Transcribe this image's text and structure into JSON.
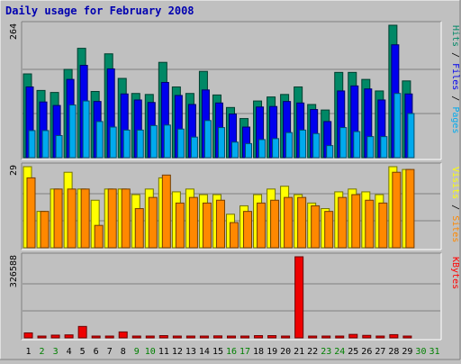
{
  "chart_data": [
    {
      "type": "bar",
      "title": "Daily usage for February 2008",
      "max_label": "264",
      "legend": [
        {
          "label": "Pages",
          "color": "#00aaee"
        },
        {
          "label": "Files",
          "color": "#0000ee"
        },
        {
          "label": "Hits",
          "color": "#008866"
        }
      ],
      "categories": [
        "1",
        "2",
        "3",
        "4",
        "5",
        "6",
        "7",
        "8",
        "9",
        "10",
        "11",
        "12",
        "13",
        "14",
        "15",
        "16",
        "17",
        "18",
        "19",
        "20",
        "21",
        "22",
        "23",
        "24",
        "25",
        "26",
        "27",
        "28",
        "29",
        "30",
        "31"
      ],
      "weekend_days": [
        "2",
        "3",
        "9",
        "10",
        "16",
        "17",
        "23",
        "24",
        "30",
        "31"
      ],
      "series": [
        {
          "name": "Hits",
          "color": "#008866",
          "values": [
            167,
            134,
            130,
            176,
            218,
            132,
            207,
            158,
            128,
            126,
            190,
            141,
            128,
            172,
            125,
            100,
            78,
            113,
            121,
            126,
            141,
            106,
            95,
            170,
            170,
            156,
            133,
            264,
            153,
            0,
            0
          ]
        },
        {
          "name": "Files",
          "color": "#0000ee",
          "values": [
            141,
            111,
            104,
            156,
            184,
            112,
            177,
            127,
            115,
            110,
            150,
            124,
            106,
            135,
            109,
            87,
            61,
            101,
            102,
            112,
            109,
            96,
            72,
            133,
            143,
            137,
            115,
            225,
            127,
            0,
            0
          ]
        },
        {
          "name": "Pages",
          "color": "#00aaee",
          "values": [
            54,
            54,
            44,
            105,
            113,
            72,
            61,
            55,
            55,
            64,
            65,
            57,
            41,
            74,
            60,
            31,
            28,
            36,
            38,
            50,
            55,
            48,
            24,
            60,
            52,
            42,
            42,
            128,
            88,
            0,
            0
          ]
        }
      ]
    },
    {
      "type": "bar",
      "max_label": "29",
      "legend": [
        {
          "label": "Sites",
          "color": "#ff8800"
        },
        {
          "label": "Visits",
          "color": "#ffff00"
        }
      ],
      "categories": [
        "1",
        "2",
        "3",
        "4",
        "5",
        "6",
        "7",
        "8",
        "9",
        "10",
        "11",
        "12",
        "13",
        "14",
        "15",
        "16",
        "17",
        "18",
        "19",
        "20",
        "21",
        "22",
        "23",
        "24",
        "25",
        "26",
        "27",
        "28",
        "29",
        "30",
        "31"
      ],
      "series": [
        {
          "name": "Visits",
          "color": "#ffff00",
          "values": [
            29,
            13,
            21,
            27,
            21,
            17,
            21,
            21,
            19,
            21,
            25,
            20,
            21,
            19,
            19,
            12,
            15,
            19,
            21,
            22,
            19,
            16,
            14,
            20,
            21,
            20,
            19,
            29,
            28,
            0,
            0
          ]
        },
        {
          "name": "Sites",
          "color": "#ff8800",
          "values": [
            25,
            13,
            21,
            21,
            21,
            8,
            21,
            21,
            14,
            18,
            26,
            16,
            18,
            16,
            17,
            9,
            13,
            16,
            17,
            18,
            18,
            15,
            13,
            18,
            19,
            17,
            16,
            27,
            28,
            0,
            0
          ]
        }
      ]
    },
    {
      "type": "bar",
      "max_label": "326588",
      "legend": [
        {
          "label": "KBytes",
          "color": "#ff0000"
        }
      ],
      "categories": [
        "1",
        "2",
        "3",
        "4",
        "5",
        "6",
        "7",
        "8",
        "9",
        "10",
        "11",
        "12",
        "13",
        "14",
        "15",
        "16",
        "17",
        "18",
        "19",
        "20",
        "21",
        "22",
        "23",
        "24",
        "25",
        "26",
        "27",
        "28",
        "29",
        "30",
        "31"
      ],
      "series": [
        {
          "name": "KBytes",
          "color": "#ee0000",
          "values": [
            20000,
            6000,
            11000,
            12000,
            46000,
            4000,
            4000,
            24000,
            5000,
            7000,
            9000,
            6000,
            5000,
            6000,
            8000,
            6000,
            6000,
            9000,
            9000,
            7000,
            326588,
            4000,
            4000,
            5000,
            14000,
            10000,
            7000,
            13000,
            4000,
            0,
            0
          ]
        }
      ]
    }
  ]
}
